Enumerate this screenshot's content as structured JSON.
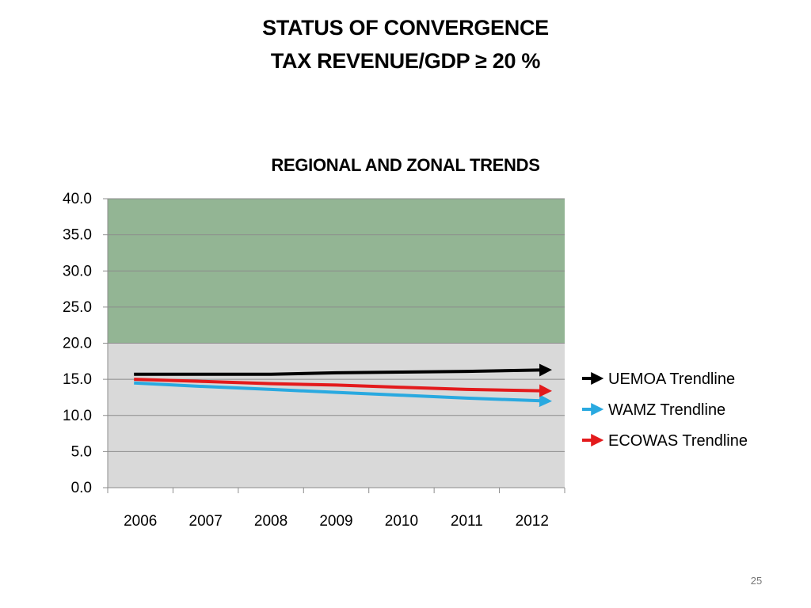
{
  "slide": {
    "title_line1": "STATUS OF CONVERGENCE",
    "title_line2": "TAX REVENUE/GDP ≥ 20 %",
    "page_number": "25"
  },
  "chart_data": {
    "type": "line",
    "title": "REGIONAL AND ZONAL TRENDS",
    "categories": [
      "2006",
      "2007",
      "2008",
      "2009",
      "2010",
      "2011",
      "2012"
    ],
    "y_ticks": [
      "0.0",
      "5.0",
      "10.0",
      "15.0",
      "20.0",
      "25.0",
      "30.0",
      "35.0",
      "40.0"
    ],
    "ylim": [
      0,
      40
    ],
    "grid": true,
    "legend_position": "right",
    "target_band": {
      "from": 20,
      "to": 40,
      "color": "#93B594"
    },
    "plot_background": "#D9D9D9",
    "series": [
      {
        "name": "UEMOA Trendline",
        "color": "#000000",
        "values": [
          15.7,
          15.7,
          15.7,
          15.9,
          16.0,
          16.1,
          16.3
        ]
      },
      {
        "name": "WAMZ Trendline",
        "color": "#29A9E0",
        "values": [
          14.5,
          14.0,
          13.6,
          13.2,
          12.8,
          12.4,
          12.0
        ]
      },
      {
        "name": "ECOWAS Trendline",
        "color": "#E31A1C",
        "values": [
          15.0,
          14.7,
          14.4,
          14.2,
          13.9,
          13.6,
          13.4
        ]
      }
    ]
  }
}
